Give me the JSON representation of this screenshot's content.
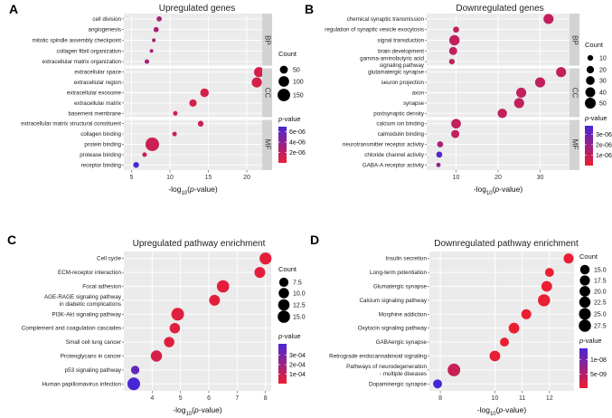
{
  "chart_data": [
    {
      "type": "scatter",
      "panel": "A",
      "title": "Upregulated genes",
      "xlabel": "-log10(p-value)",
      "xlim": [
        4,
        22
      ],
      "xticks": [
        5,
        10,
        15,
        20
      ],
      "groups": [
        {
          "name": "BP",
          "items": [
            {
              "label": "cell division",
              "x": 8.6,
              "count": 15,
              "p": 3e-06
            },
            {
              "label": "angiogenesis",
              "x": 8.2,
              "count": 15,
              "p": 3e-06
            },
            {
              "label": "mitotic spindle assembly checkpoint",
              "x": 7.9,
              "count": 5,
              "p": 3e-06
            },
            {
              "label": "collagen fibril organization",
              "x": 7.6,
              "count": 5,
              "p": 3e-06
            },
            {
              "label": "extracellular matrix organization",
              "x": 7.0,
              "count": 10,
              "p": 3e-06
            }
          ]
        },
        {
          "name": "CC",
          "items": [
            {
              "label": "extracellular space",
              "x": 21.6,
              "count": 90,
              "p": 1e-06
            },
            {
              "label": "extracellular region",
              "x": 21.3,
              "count": 90,
              "p": 1e-06
            },
            {
              "label": "extracellular exosome",
              "x": 14.5,
              "count": 60,
              "p": 1e-06
            },
            {
              "label": "extracellular matrix",
              "x": 13.0,
              "count": 40,
              "p": 1e-06
            },
            {
              "label": "basement membrane",
              "x": 10.7,
              "count": 10,
              "p": 1e-06
            }
          ]
        },
        {
          "name": "MF",
          "items": [
            {
              "label": "extracellular matrix structural constituent",
              "x": 14.0,
              "count": 20,
              "p": 1.5e-06
            },
            {
              "label": "collagen binding",
              "x": 10.6,
              "count": 10,
              "p": 1.5e-06
            },
            {
              "label": "protein binding",
              "x": 7.7,
              "count": 180,
              "p": 1.5e-06
            },
            {
              "label": "protease binding",
              "x": 6.7,
              "count": 10,
              "p": 1.5e-06
            },
            {
              "label": "receptor binding",
              "x": 5.6,
              "count": 20,
              "p": 7e-06
            }
          ]
        }
      ],
      "size_legend": {
        "title": "Count",
        "values": [
          50,
          100,
          150
        ],
        "labels": [
          "50",
          "100",
          "150"
        ]
      },
      "color_legend": {
        "title": "p-value",
        "min": 0,
        "max": 7e-06,
        "ticks": [
          6e-06,
          4e-06,
          2e-06
        ],
        "labels": [
          "6e-06",
          "4e-06",
          "2e-06"
        ]
      }
    },
    {
      "type": "scatter",
      "panel": "B",
      "title": "Downregulated genes",
      "xlabel": "-log10(p-value)",
      "xlim": [
        3,
        37
      ],
      "xticks": [
        10,
        20,
        30
      ],
      "groups": [
        {
          "name": "BP",
          "items": [
            {
              "label": "chemical synaptic transmission",
              "x": 32.0,
              "count": 42,
              "p": 1e-06
            },
            {
              "label": "regulation of synaptic vesicle exocytosis",
              "x": 10.0,
              "count": 12,
              "p": 1e-06
            },
            {
              "label": "signal transduction",
              "x": 9.6,
              "count": 45,
              "p": 1e-06
            },
            {
              "label": "brain development",
              "x": 9.3,
              "count": 25,
              "p": 1e-06
            },
            {
              "label": "gamma-aminobutyric acid signaling pathway",
              "x": 9.0,
              "count": 10,
              "p": 1e-06
            }
          ]
        },
        {
          "name": "CC",
          "items": [
            {
              "label": "glutamatergic synapse",
              "x": 35.0,
              "count": 42,
              "p": 1e-06
            },
            {
              "label": "seuron projection",
              "x": 30.0,
              "count": 42,
              "p": 1e-06
            },
            {
              "label": "axon",
              "x": 25.5,
              "count": 42,
              "p": 1e-06
            },
            {
              "label": "synapse",
              "x": 25.0,
              "count": 42,
              "p": 1e-06
            },
            {
              "label": "postsynaptic density",
              "x": 21.0,
              "count": 35,
              "p": 1e-06
            }
          ]
        },
        {
          "name": "MF",
          "items": [
            {
              "label": "calcium ion binding",
              "x": 10.0,
              "count": 38,
              "p": 1e-06
            },
            {
              "label": "calmodulin binding",
              "x": 9.8,
              "count": 25,
              "p": 1e-06
            },
            {
              "label": "neurotransmitter receptor activity",
              "x": 6.2,
              "count": 12,
              "p": 1.5e-06
            },
            {
              "label": "chloride channel activity",
              "x": 6.0,
              "count": 12,
              "p": 3.6e-06
            },
            {
              "label": "GABA-A receptor activity",
              "x": 5.8,
              "count": 5,
              "p": 2e-06
            }
          ]
        }
      ],
      "size_legend": {
        "title": "Count",
        "values": [
          10,
          20,
          30,
          40,
          50
        ],
        "labels": [
          "10",
          "20",
          "30",
          "40",
          "50"
        ]
      },
      "color_legend": {
        "title": "p-value",
        "min": 0,
        "max": 3.8e-06,
        "ticks": [
          3e-06,
          2e-06,
          1e-06
        ],
        "labels": [
          "3e-06",
          "2e-06",
          "1e-06"
        ]
      }
    },
    {
      "type": "scatter",
      "panel": "C",
      "title": "Upregulated pathway enrichment",
      "xlabel": "-log10(p-value)",
      "xlim": [
        3.0,
        8.2
      ],
      "xticks": [
        4,
        5,
        6,
        7,
        8
      ],
      "groups": [
        {
          "name": "",
          "items": [
            {
              "label": "Cell cycle",
              "x": 8.0,
              "count": 14,
              "p": 2e-05
            },
            {
              "label": "ECM-receptor interaction",
              "x": 7.8,
              "count": 11,
              "p": 2e-05
            },
            {
              "label": "Focal adhesion",
              "x": 6.5,
              "count": 15,
              "p": 2e-05
            },
            {
              "label": "AGE-RAGE signaling pathway in diabetic complications",
              "x": 6.2,
              "count": 11,
              "p": 2e-05
            },
            {
              "label": "PI3K-Akt signaling pathway",
              "x": 4.9,
              "count": 16,
              "p": 3e-05
            },
            {
              "label": "Complement and coagulation cascades",
              "x": 4.8,
              "count": 10,
              "p": 3e-05
            },
            {
              "label": "Small cell lung cancer",
              "x": 4.6,
              "count": 10,
              "p": 3e-05
            },
            {
              "label": "Proteoglycans in cancer",
              "x": 4.15,
              "count": 12,
              "p": 6e-05
            },
            {
              "label": "p53 signaling pathway",
              "x": 3.4,
              "count": 6,
              "p": 0.00035
            },
            {
              "label": "Human papillomavirus infection",
              "x": 3.35,
              "count": 16,
              "p": 0.00042
            }
          ]
        }
      ],
      "size_legend": {
        "title": "Count",
        "values": [
          7.5,
          10.0,
          12.5,
          15.0
        ],
        "labels": [
          "7.5",
          "10.0",
          "12.5",
          "15.0"
        ]
      },
      "color_legend": {
        "title": "p-value",
        "min": 0,
        "max": 0.00042,
        "ticks": [
          0.0003,
          0.0002,
          0.0001
        ],
        "labels": [
          "3e-04",
          "2e-04",
          "1e-04"
        ]
      }
    },
    {
      "type": "scatter",
      "panel": "D",
      "title": "Downregulated pathway enrichment",
      "xlabel": "-log10(p-value)",
      "xlim": [
        7.6,
        12.9
      ],
      "xticks": [
        8,
        10,
        11,
        12
      ],
      "groups": [
        {
          "name": "",
          "items": [
            {
              "label": "Insulin secretion",
              "x": 12.7,
              "count": 17,
              "p": 1e-10
            },
            {
              "label": "Long-term potentiation",
              "x": 12.0,
              "count": 13,
              "p": 1e-10
            },
            {
              "label": "Glumatergic synapse",
              "x": 11.9,
              "count": 20,
              "p": 1e-10
            },
            {
              "label": "Calcium signaling pathway",
              "x": 11.8,
              "count": 27,
              "p": 1e-10
            },
            {
              "label": "Morphine addiction",
              "x": 11.15,
              "count": 17,
              "p": 1e-10
            },
            {
              "label": "Oxytocin signaling pathway",
              "x": 10.7,
              "count": 20,
              "p": 1e-10
            },
            {
              "label": "GABAergic synapse",
              "x": 10.35,
              "count": 13,
              "p": 1e-10
            },
            {
              "label": "Retrograde endocannabinoid signaling",
              "x": 10.0,
              "count": 20,
              "p": 3e-10
            },
            {
              "label": "Pathways of neurodegeneration - multiple diseases",
              "x": 8.5,
              "count": 30,
              "p": 3e-09
            },
            {
              "label": "Dopaminergic synapse",
              "x": 7.9,
              "count": 13,
              "p": 1.4e-08
            }
          ]
        }
      ],
      "size_legend": {
        "title": "Count",
        "values": [
          15.0,
          17.5,
          20.0,
          22.5,
          25.0,
          27.5
        ],
        "labels": [
          "15.0",
          "17.5",
          "20.0",
          "22.5",
          "25.0",
          "27.5"
        ]
      },
      "color_legend": {
        "title": "p-value",
        "min": 0,
        "max": 1.4e-08,
        "ticks": [
          1e-08,
          5e-09
        ],
        "labels": [
          "1e-08",
          "5e-09"
        ]
      }
    }
  ]
}
